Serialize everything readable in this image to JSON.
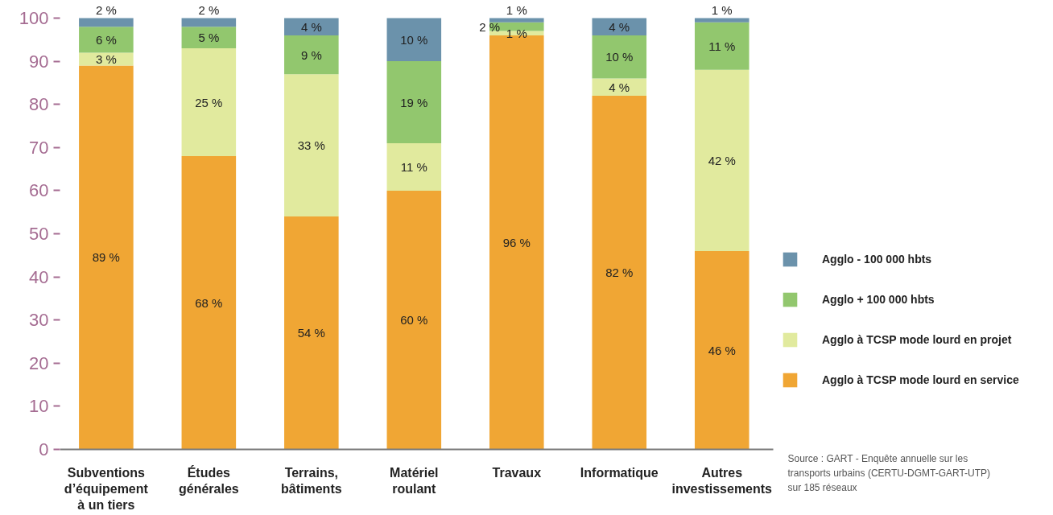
{
  "chart_data": {
    "type": "bar",
    "stacked": true,
    "categories": [
      "Subventions d’équipement à un tiers",
      "Études générales",
      "Terrains, bâtiments",
      "Matériel roulant",
      "Travaux",
      "Informatique",
      "Autres investissements"
    ],
    "series": [
      {
        "name": "Agglo à TCSP mode lourd en service",
        "color": "#f0a634",
        "values": [
          89,
          68,
          54,
          60,
          96,
          82,
          46
        ],
        "value_labels": [
          "89 %",
          "68 %",
          "54 %",
          "60 %",
          "96 %",
          "82 %",
          "46 %"
        ]
      },
      {
        "name": "Agglo à TCSP mode lourd en projet",
        "color": "#e1ea9e",
        "values": [
          3,
          25,
          33,
          11,
          1,
          4,
          42
        ],
        "value_labels": [
          "3 %",
          "25 %",
          "33 %",
          "11 %",
          "1 %",
          "4 %",
          "42 %"
        ]
      },
      {
        "name": "Agglo + 100 000 hbts",
        "color": "#92c76e",
        "values": [
          6,
          5,
          9,
          19,
          2,
          10,
          11
        ],
        "value_labels": [
          "6 %",
          "5 %",
          "9 %",
          "19 %",
          "2 %",
          "10 %",
          "11 %"
        ]
      },
      {
        "name": "Agglo - 100 000 hbts",
        "color": "#6b92ab",
        "values": [
          2,
          2,
          4,
          10,
          1,
          4,
          1
        ],
        "value_labels": [
          "2 %",
          "2 %",
          "4 %",
          "10 %",
          "1 %",
          "4 %",
          "1 %"
        ]
      }
    ],
    "ylim": [
      0,
      100
    ],
    "yticks": [
      0,
      10,
      20,
      30,
      40,
      50,
      60,
      70,
      80,
      90,
      100
    ],
    "legend": "right",
    "annotations": [
      "Source : GART - Enquête annuelle sur les transports urbains (CERTU-DGMT-GART-UTP) sur 185 réseaux"
    ]
  }
}
